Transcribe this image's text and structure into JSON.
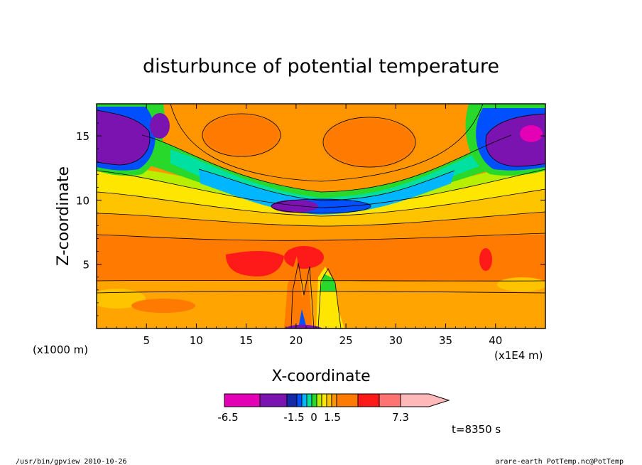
{
  "chart_data": {
    "type": "heatmap",
    "title": "disturbunce of potential temperature",
    "xlabel": "X-coordinate",
    "ylabel": "Z-coordinate",
    "x_unit_left": "(x1000 m)",
    "x_unit_right": "(x1E4 m)",
    "xlim": [
      0,
      45
    ],
    "ylim": [
      0,
      17.5
    ],
    "x_ticks": [
      5,
      10,
      15,
      20,
      25,
      30,
      35,
      40
    ],
    "y_ticks": [
      5,
      10,
      15
    ],
    "x_tick_labels": [
      "5",
      "10",
      "15",
      "20",
      "25",
      "30",
      "35",
      "40"
    ],
    "y_tick_labels": [
      "5",
      "10",
      "15"
    ],
    "colorbar": {
      "colors": [
        "#e400b4",
        "#7a13b0",
        "#1528a8",
        "#0050ff",
        "#00b7ff",
        "#00e0a0",
        "#28d82a",
        "#b8ee00",
        "#ffe600",
        "#ffc400",
        "#ff9600",
        "#ff7a00",
        "#ff1a1a",
        "#ff7373",
        "#ffb9b9"
      ],
      "tick_labels": [
        "-6.5",
        "-1.5",
        "0",
        "1.5",
        "7.3"
      ]
    },
    "time_label": "t=8350 s"
  },
  "footer": {
    "left": "/usr/bin/gpview   2010-10-26",
    "right": "arare-earth_PotTemp.nc@PotTemp"
  }
}
